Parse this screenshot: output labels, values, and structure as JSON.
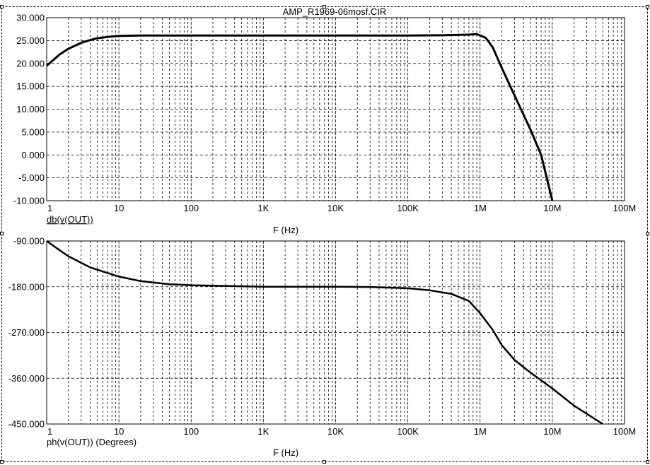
{
  "window": {
    "title": "AMP_R1969-06mosf.CIR"
  },
  "colors": {
    "background": "#ffffff",
    "trace": "#000000",
    "grid": "#000000"
  },
  "chart_data": [
    {
      "type": "line",
      "scale": {
        "x": "log",
        "y": "linear"
      },
      "grid": true,
      "x_axis_label": "F (Hz)",
      "trace_label": "db(v(OUT))",
      "xlim": [
        1,
        100000000
      ],
      "ylim": [
        -10,
        30
      ],
      "x_ticks": [
        {
          "value": 1,
          "label": "1"
        },
        {
          "value": 10,
          "label": "10"
        },
        {
          "value": 100,
          "label": "100"
        },
        {
          "value": 1000,
          "label": "1K"
        },
        {
          "value": 10000,
          "label": "10K"
        },
        {
          "value": 100000,
          "label": "100K"
        },
        {
          "value": 1000000,
          "label": "1M"
        },
        {
          "value": 10000000,
          "label": "10M"
        },
        {
          "value": 100000000,
          "label": "100M"
        }
      ],
      "y_ticks": [
        {
          "value": 30,
          "label": "30.000"
        },
        {
          "value": 25,
          "label": "25.000"
        },
        {
          "value": 20,
          "label": "20.000"
        },
        {
          "value": 15,
          "label": "15.000"
        },
        {
          "value": 10,
          "label": "10.000"
        },
        {
          "value": 5,
          "label": "5.000"
        },
        {
          "value": 0,
          "label": "0.000"
        },
        {
          "value": -5,
          "label": "-5.000"
        },
        {
          "value": -10,
          "label": "-10.000"
        }
      ],
      "series": [
        {
          "x": [
            1,
            1.5,
            2,
            3,
            4,
            5,
            7,
            10,
            20,
            50,
            100,
            1000,
            10000,
            100000,
            300000,
            700000,
            900000,
            1200000,
            1500000,
            2000000,
            3000000,
            5000000,
            7000000,
            10000000
          ],
          "y": [
            19.5,
            21.9,
            23.2,
            24.5,
            25.1,
            25.5,
            25.8,
            26.0,
            26.1,
            26.1,
            26.1,
            26.1,
            26.1,
            26.1,
            26.15,
            26.3,
            26.4,
            25.6,
            23.5,
            19.0,
            13.0,
            5.5,
            0.0,
            -10.0
          ]
        }
      ]
    },
    {
      "type": "line",
      "scale": {
        "x": "log",
        "y": "linear"
      },
      "grid": true,
      "x_axis_label": "F (Hz)",
      "trace_label": "ph(v(OUT)) (Degrees)",
      "xlim": [
        1,
        100000000
      ],
      "ylim": [
        -450,
        -90
      ],
      "x_ticks": [
        {
          "value": 1,
          "label": "1"
        },
        {
          "value": 10,
          "label": "10"
        },
        {
          "value": 100,
          "label": "100"
        },
        {
          "value": 1000,
          "label": "1K"
        },
        {
          "value": 10000,
          "label": "10K"
        },
        {
          "value": 100000,
          "label": "100K"
        },
        {
          "value": 1000000,
          "label": "1M"
        },
        {
          "value": 10000000,
          "label": "10M"
        },
        {
          "value": 100000000,
          "label": "100M"
        }
      ],
      "y_ticks": [
        {
          "value": -90,
          "label": "-90.000"
        },
        {
          "value": -180,
          "label": "-180.000"
        },
        {
          "value": -270,
          "label": "-270.000"
        },
        {
          "value": -360,
          "label": "-360.000"
        },
        {
          "value": -450,
          "label": "-450.000"
        }
      ],
      "series": [
        {
          "x": [
            1,
            1.5,
            2,
            4,
            7,
            10,
            20,
            50,
            100,
            1000,
            10000,
            30000,
            100000,
            200000,
            400000,
            700000,
            1000000,
            1500000,
            2000000,
            3000000,
            5000000,
            10000000,
            20000000,
            50000000
          ],
          "y": [
            -90,
            -108,
            -120,
            -142,
            -153,
            -160,
            -169,
            -175,
            -177,
            -180,
            -180,
            -180.5,
            -183,
            -187,
            -194,
            -208,
            -232,
            -265,
            -295,
            -324,
            -349,
            -380,
            -414,
            -450
          ]
        }
      ]
    }
  ]
}
